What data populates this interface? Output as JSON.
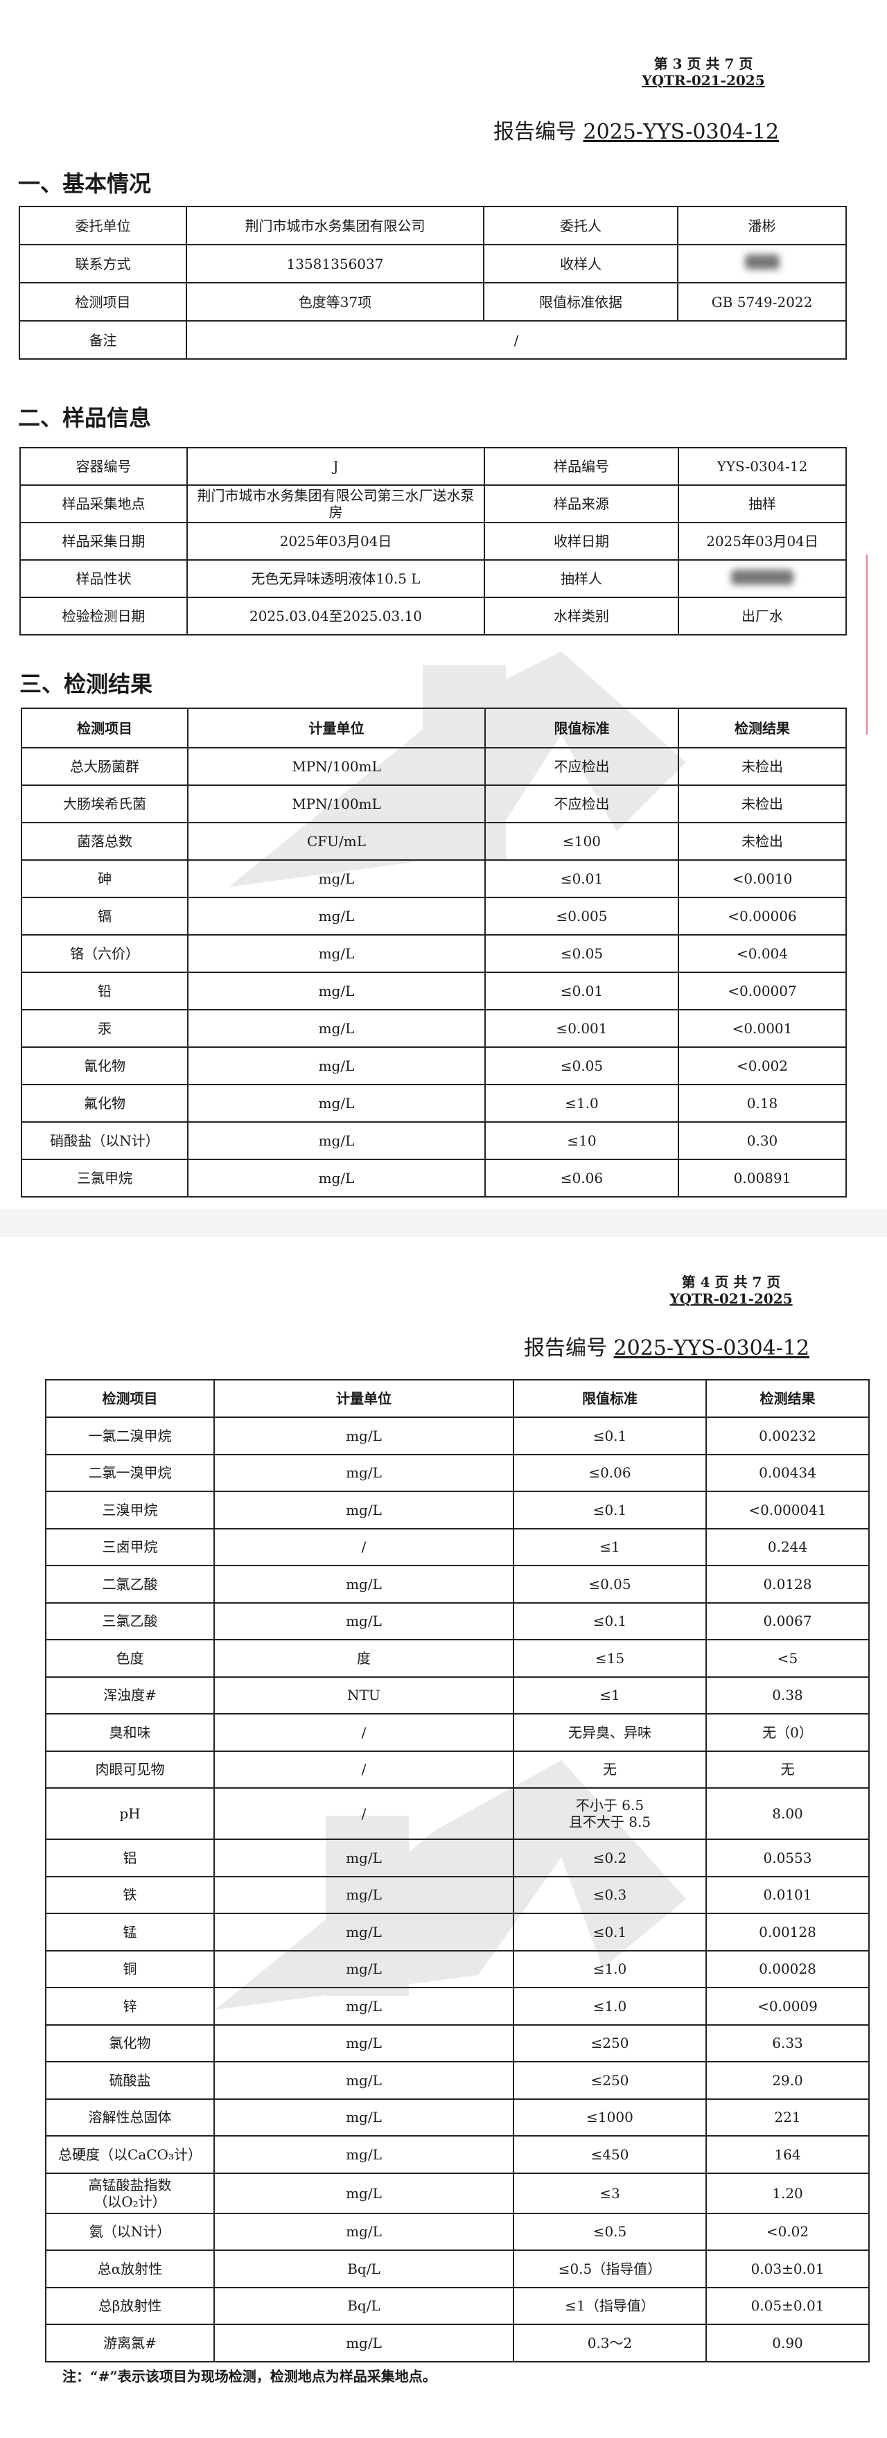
{
  "page1": {
    "page_info": "第 3 页 共 7 页",
    "form_code": "YQTR-021-2025",
    "report_label": "报告编号",
    "report_number": "2025-YYS-0304-12",
    "section1_title": "一、基本情况",
    "basic": [
      [
        "委托单位",
        "荆门市城市水务集团有限公司",
        "委托人",
        "潘彬"
      ],
      [
        "联系方式",
        "13581356037",
        "收样人",
        ""
      ],
      [
        "检测项目",
        "色度等37项",
        "限值标准依据",
        "GB 5749-2022"
      ],
      [
        "备注",
        "/"
      ]
    ],
    "section2_title": "二、样品信息",
    "sample": [
      [
        "容器编号",
        "J",
        "样品编号",
        "YYS-0304-12"
      ],
      [
        "样品采集地点",
        "荆门市城市水务集团有限公司第三水厂送水泵房",
        "样品来源",
        "抽样"
      ],
      [
        "样品采集日期",
        "2025年03月04日",
        "收样日期",
        "2025年03月04日"
      ],
      [
        "样品性状",
        "无色无异味透明液体10.5 L",
        "抽样人",
        ""
      ],
      [
        "检验检测日期",
        "2025.03.04至2025.03.10",
        "水样类别",
        "出厂水"
      ]
    ],
    "section3_title": "三、检测结果",
    "results_header": [
      "检测项目",
      "计量单位",
      "限值标准",
      "检测结果"
    ],
    "results": [
      [
        "总大肠菌群",
        "MPN/100mL",
        "不应检出",
        "未检出"
      ],
      [
        "大肠埃希氏菌",
        "MPN/100mL",
        "不应检出",
        "未检出"
      ],
      [
        "菌落总数",
        "CFU/mL",
        "≤100",
        "未检出"
      ],
      [
        "砷",
        "mg/L",
        "≤0.01",
        "<0.0010"
      ],
      [
        "镉",
        "mg/L",
        "≤0.005",
        "<0.00006"
      ],
      [
        "铬（六价）",
        "mg/L",
        "≤0.05",
        "<0.004"
      ],
      [
        "铅",
        "mg/L",
        "≤0.01",
        "<0.00007"
      ],
      [
        "汞",
        "mg/L",
        "≤0.001",
        "<0.0001"
      ],
      [
        "氰化物",
        "mg/L",
        "≤0.05",
        "<0.002"
      ],
      [
        "氟化物",
        "mg/L",
        "≤1.0",
        "0.18"
      ],
      [
        "硝酸盐（以N计）",
        "mg/L",
        "≤10",
        "0.30"
      ],
      [
        "三氯甲烷",
        "mg/L",
        "≤0.06",
        "0.00891"
      ]
    ]
  },
  "page2": {
    "page_info": "第 4 页 共 7 页",
    "form_code": "YQTR-021-2025",
    "report_label": "报告编号",
    "report_number": "2025-YYS-0304-12",
    "results_header": [
      "检测项目",
      "计量单位",
      "限值标准",
      "检测结果"
    ],
    "results": [
      [
        "一氯二溴甲烷",
        "mg/L",
        "≤0.1",
        "0.00232"
      ],
      [
        "二氯一溴甲烷",
        "mg/L",
        "≤0.06",
        "0.00434"
      ],
      [
        "三溴甲烷",
        "mg/L",
        "≤0.1",
        "<0.000041"
      ],
      [
        "三卤甲烷",
        "/",
        "≤1",
        "0.244"
      ],
      [
        "二氯乙酸",
        "mg/L",
        "≤0.05",
        "0.0128"
      ],
      [
        "三氯乙酸",
        "mg/L",
        "≤0.1",
        "0.0067"
      ],
      [
        "色度",
        "度",
        "≤15",
        "<5"
      ],
      [
        "浑浊度#",
        "NTU",
        "≤1",
        "0.38"
      ],
      [
        "臭和味",
        "/",
        "无异臭、异味",
        "无（0）"
      ],
      [
        "肉眼可见物",
        "/",
        "无",
        "无"
      ],
      [
        "pH",
        "/",
        "不小于 6.5\n且不大于 8.5",
        "8.00"
      ],
      [
        "铝",
        "mg/L",
        "≤0.2",
        "0.0553"
      ],
      [
        "铁",
        "mg/L",
        "≤0.3",
        "0.0101"
      ],
      [
        "锰",
        "mg/L",
        "≤0.1",
        "0.00128"
      ],
      [
        "铜",
        "mg/L",
        "≤1.0",
        "0.00028"
      ],
      [
        "锌",
        "mg/L",
        "≤1.0",
        "<0.0009"
      ],
      [
        "氯化物",
        "mg/L",
        "≤250",
        "6.33"
      ],
      [
        "硫酸盐",
        "mg/L",
        "≤250",
        "29.0"
      ],
      [
        "溶解性总固体",
        "mg/L",
        "≤1000",
        "221"
      ],
      [
        "总硬度（以CaCO₃计）",
        "mg/L",
        "≤450",
        "164"
      ],
      [
        "高锰酸盐指数\n（以O₂计）",
        "mg/L",
        "≤3",
        "1.20"
      ],
      [
        "氨（以N计）",
        "mg/L",
        "≤0.5",
        "<0.02"
      ],
      [
        "总α放射性",
        "Bq/L",
        "≤0.5（指导值）",
        "0.03±0.01"
      ],
      [
        "总β放射性",
        "Bq/L",
        "≤1（指导值）",
        "0.05±0.01"
      ],
      [
        "游离氯#",
        "mg/L",
        "0.3～2",
        "0.90"
      ]
    ],
    "note": "注：“#”表示该项目为现场检测，检测地点为样品采集地点。"
  }
}
